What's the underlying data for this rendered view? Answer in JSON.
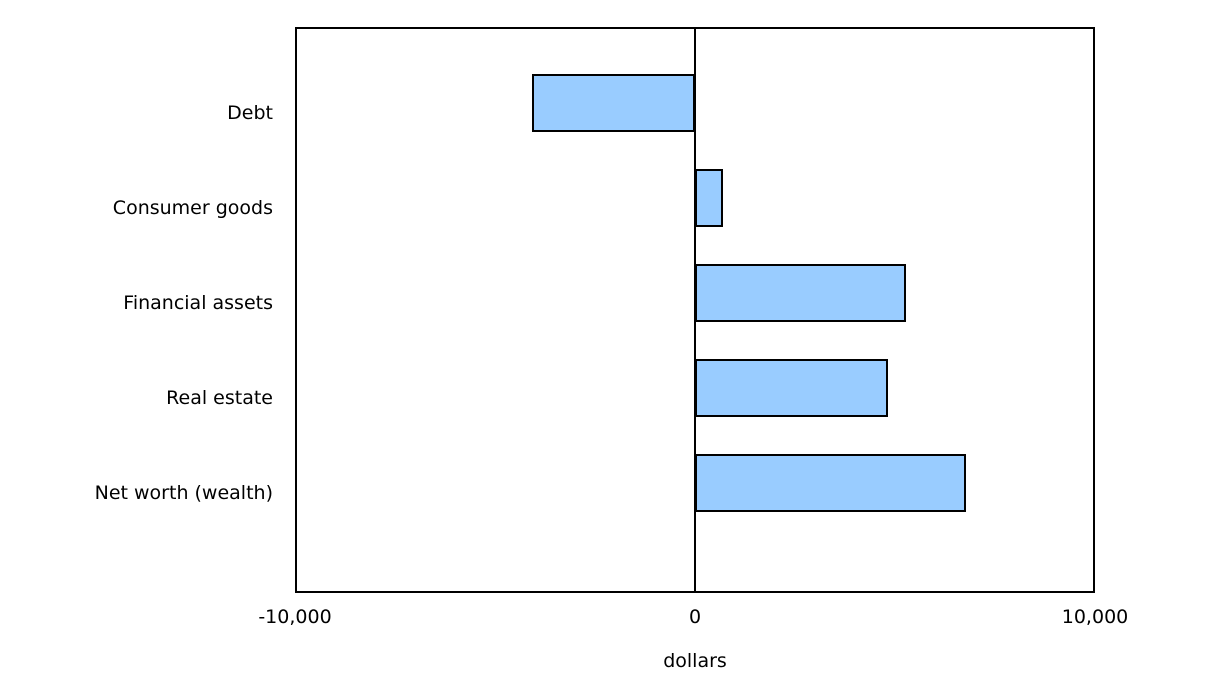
{
  "chart_data": {
    "type": "bar",
    "orientation": "horizontal",
    "title": "",
    "xlabel": "dollars",
    "ylabel": "",
    "categories": [
      "Debt",
      "Consumer goods",
      "Financial assets",
      "Real estate",
      "Net worth (wealth)"
    ],
    "values": [
      -4100,
      700,
      5300,
      4850,
      6800
    ],
    "xlim": [
      -10000,
      10000
    ],
    "xticks": [
      -10000,
      0,
      10000
    ],
    "xtick_labels": [
      "-10,000",
      "0",
      "10,000"
    ],
    "grid": false,
    "legend": null,
    "bar_fill_color": "#99CCFF",
    "bar_border_color": "#000000",
    "axis_color": "#000000",
    "text_color": "#000000"
  }
}
